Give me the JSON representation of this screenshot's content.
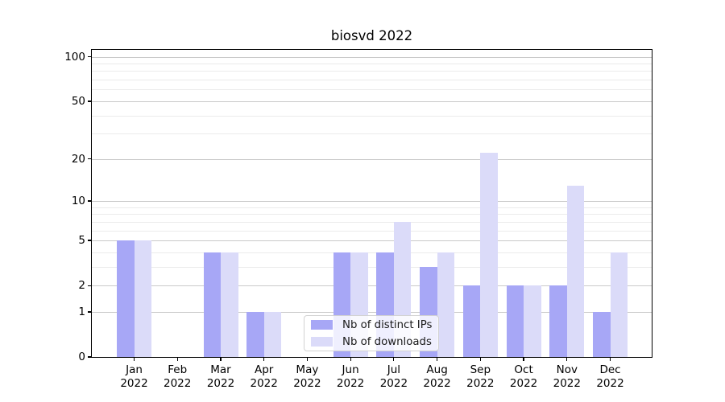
{
  "chart_data": {
    "type": "bar",
    "title": "biosvd 2022",
    "year": "2022",
    "months": [
      "Jan",
      "Feb",
      "Mar",
      "Apr",
      "May",
      "Jun",
      "Jul",
      "Aug",
      "Sep",
      "Oct",
      "Nov",
      "Dec"
    ],
    "series": [
      {
        "name": "Nb of distinct IPs",
        "color": "#a7a7f6",
        "values": [
          5,
          0,
          4,
          1,
          0,
          4,
          4,
          3,
          2,
          2,
          2,
          1
        ]
      },
      {
        "name": "Nb of downloads",
        "color": "#dbdbf9",
        "values": [
          5,
          0,
          4,
          1,
          0,
          4,
          7,
          4,
          22,
          2,
          13,
          4
        ]
      }
    ],
    "xlabel": "",
    "ylabel": "",
    "scale": "log1p",
    "ylim": [
      0,
      111
    ],
    "y_major_ticks": [
      0,
      1,
      2,
      5,
      10,
      20,
      50,
      100
    ],
    "y_minor_gridlines": [
      3,
      4,
      6,
      7,
      8,
      9,
      30,
      40,
      60,
      70,
      80,
      90
    ],
    "grid": true,
    "legend_position": "lower center",
    "colors": {
      "major_grid": "#c9c9c9",
      "minor_grid": "#ebebeb",
      "axis": "#000000",
      "background": "#ffffff"
    }
  }
}
